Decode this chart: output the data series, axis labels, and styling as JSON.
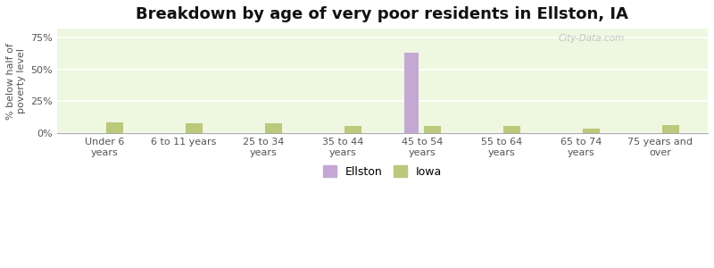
{
  "title": "Breakdown by age of very poor residents in Ellston, IA",
  "categories": [
    "Under 6\nyears",
    "6 to 11 years",
    "25 to 34\nyears",
    "35 to 44\nyears",
    "45 to 54\nyears",
    "55 to 64\nyears",
    "65 to 74\nyears",
    "75 years and\nover"
  ],
  "ellston_values": [
    0,
    0,
    0,
    0,
    63,
    0,
    0,
    0
  ],
  "iowa_values": [
    8.5,
    7.5,
    8.0,
    5.5,
    5.5,
    6.0,
    3.5,
    6.5
  ],
  "ellston_color": "#c4a8d4",
  "iowa_color": "#bcc87a",
  "ylabel": "% below half of\npoverty level",
  "ylim": [
    0,
    82
  ],
  "yticks": [
    0,
    25,
    50,
    75
  ],
  "ytick_labels": [
    "0%",
    "25%",
    "50%",
    "75%"
  ],
  "plot_bg_color": "#eef7e0",
  "figure_bg_color": "#ffffff",
  "outer_bg_color": "#00e0f0",
  "bar_width": 0.3,
  "legend_ellston": "Ellston",
  "legend_iowa": "Iowa",
  "title_fontsize": 13,
  "axis_label_fontsize": 8,
  "tick_fontsize": 8,
  "watermark": "City-Data.com"
}
